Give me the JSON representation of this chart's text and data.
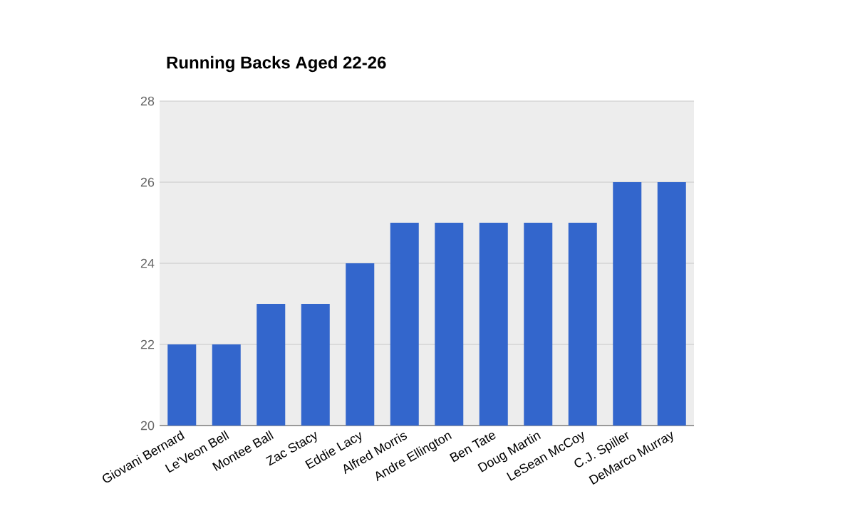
{
  "chart_data": {
    "type": "bar",
    "title": "Running Backs Aged 22-26",
    "categories": [
      "Giovani Bernard",
      "Le'Veon Bell",
      "Montee Ball",
      "Zac Stacy",
      "Eddie Lacy",
      "Alfred Morris",
      "Andre Ellington",
      "Ben Tate",
      "Doug Martin",
      "LeSean McCoy",
      "C.J. Spiller",
      "DeMarco Murray"
    ],
    "values": [
      22,
      22,
      23,
      23,
      24,
      25,
      25,
      25,
      25,
      25,
      26,
      26
    ],
    "color": "#3366cc",
    "ylim": [
      20,
      28
    ],
    "yticks": [
      20,
      22,
      24,
      26,
      28
    ],
    "grid": "y"
  }
}
